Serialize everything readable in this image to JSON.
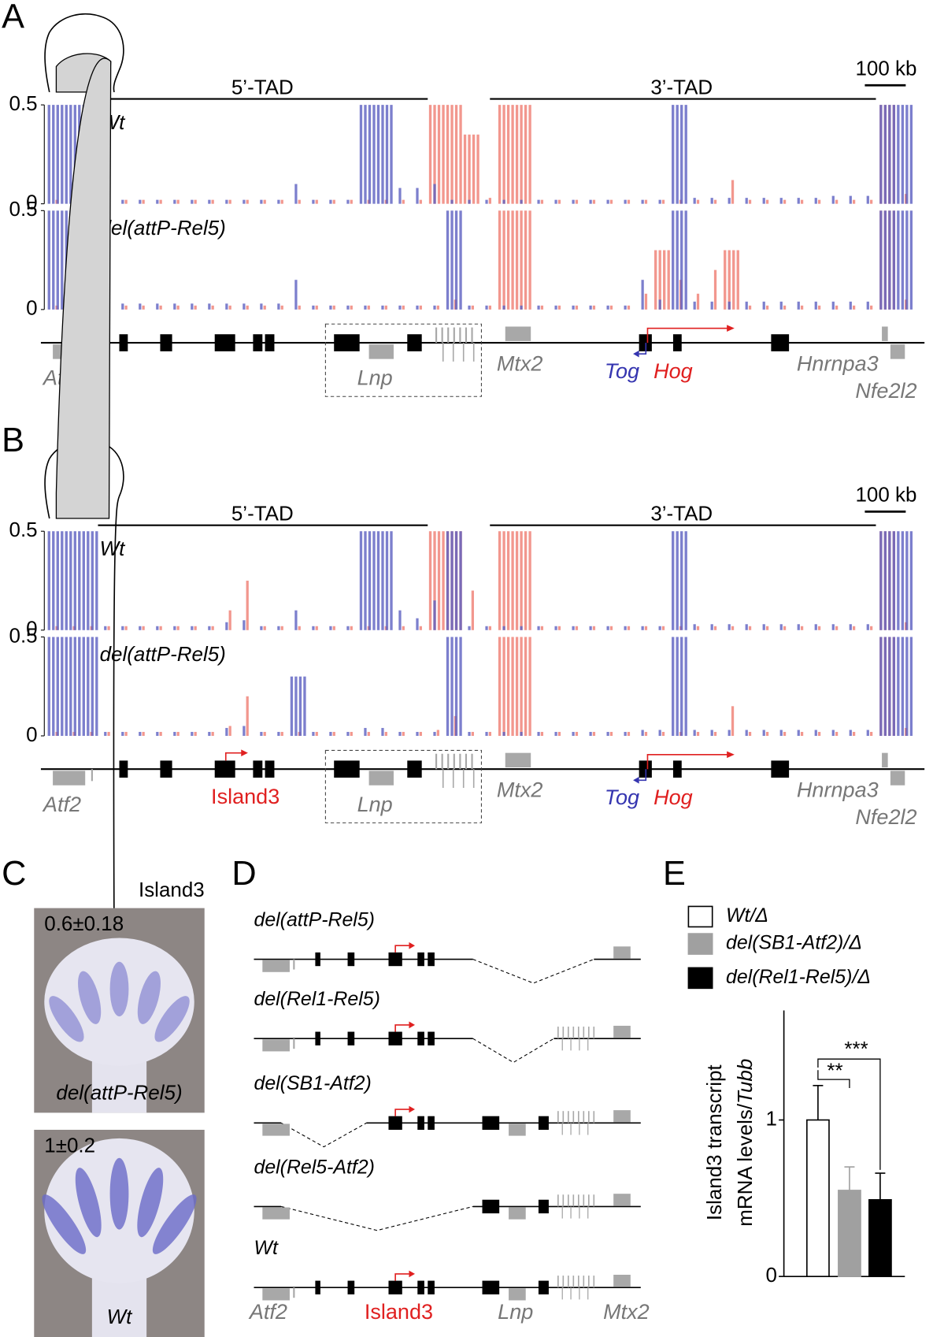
{
  "panel_labels": [
    "A",
    "B",
    "C",
    "D",
    "E"
  ],
  "browser_panels": [
    {
      "tad_left": "5’-TAD",
      "tad_right": "3’-TAD",
      "scale_bar": "100 kb",
      "tracks": [
        {
          "label": "Wt",
          "ylim": [
            0,
            0.5
          ],
          "yticks": [
            0,
            0.5
          ],
          "blue": [
            0.5,
            0.5,
            0.5,
            0.02,
            0.02,
            0.02,
            0.02,
            0.02,
            0.02,
            0.02,
            0.02,
            0.02,
            0.02,
            0.02,
            0.1,
            0.02,
            0.02,
            0.02,
            0.5,
            0.5,
            0.08,
            0.08,
            0.1,
            0.02,
            0.02,
            0.02,
            0.02,
            0.02,
            0.02,
            0.02,
            0.02,
            0.02,
            0.02,
            0.02,
            0.02,
            0.02,
            0.5,
            0.03,
            0.03,
            0.03,
            0.03,
            0.03,
            0.03,
            0.03,
            0.03,
            0.04,
            0.04,
            0.04,
            0.5,
            0.5
          ],
          "red": [
            0.02,
            0.02,
            0.02,
            0.02,
            0.02,
            0.02,
            0.02,
            0.02,
            0.02,
            0.02,
            0.02,
            0.02,
            0.02,
            0.02,
            0.02,
            0.02,
            0.02,
            0.02,
            0.02,
            0.02,
            0.02,
            0.02,
            0.5,
            0.5,
            0.35,
            0.03,
            0.5,
            0.5,
            0.02,
            0.02,
            0.02,
            0.02,
            0.02,
            0.02,
            0.02,
            0.02,
            0.02,
            0.02,
            0.02,
            0.12,
            0.02,
            0.02,
            0.02,
            0.02,
            0.02,
            0.02,
            0.02,
            0.02,
            0.5,
            0.05
          ]
        },
        {
          "label": "del(attP-Rel5)",
          "ylim": [
            0,
            0.5
          ],
          "yticks": [
            0,
            0.5
          ],
          "blue": [
            0.5,
            0.5,
            0.5,
            0.03,
            0.03,
            0.03,
            0.03,
            0.03,
            0.03,
            0.03,
            0.03,
            0.03,
            0.03,
            0.03,
            0.15,
            0.02,
            0.02,
            0.02,
            0.02,
            0.02,
            0.02,
            0.02,
            0.02,
            0.5,
            0.02,
            0.02,
            0.02,
            0.02,
            0.02,
            0.02,
            0.02,
            0.02,
            0.02,
            0.02,
            0.15,
            0.05,
            0.5,
            0.04,
            0.04,
            0.04,
            0.04,
            0.04,
            0.04,
            0.04,
            0.04,
            0.04,
            0.04,
            0.04,
            0.5,
            0.5
          ],
          "red": [
            0.02,
            0.02,
            0.02,
            0.02,
            0.02,
            0.02,
            0.02,
            0.02,
            0.02,
            0.02,
            0.02,
            0.02,
            0.02,
            0.02,
            0.02,
            0.02,
            0.02,
            0.02,
            0.02,
            0.02,
            0.02,
            0.02,
            0.02,
            0.05,
            0.02,
            0.02,
            0.5,
            0.5,
            0.02,
            0.02,
            0.02,
            0.02,
            0.02,
            0.02,
            0.08,
            0.3,
            0.15,
            0.08,
            0.2,
            0.3,
            0.02,
            0.02,
            0.02,
            0.02,
            0.02,
            0.02,
            0.02,
            0.02,
            0.5,
            0.05
          ]
        }
      ],
      "genes": {
        "Atf2": "Atf2",
        "Lnp": "Lnp",
        "Mtx2": "Mtx2",
        "Tog": "Tog",
        "Hog": "Hog",
        "Hnrnpa3": "Hnrnpa3",
        "Nfe2l2": "Nfe2l2"
      }
    },
    {
      "tad_left": "5’-TAD",
      "tad_right": "3’-TAD",
      "scale_bar": "100 kb",
      "tracks": [
        {
          "label": "Wt",
          "ylim": [
            0,
            0.5
          ],
          "yticks": [
            0,
            0.5
          ],
          "blue": [
            0.5,
            0.5,
            0.5,
            0.02,
            0.02,
            0.02,
            0.02,
            0.02,
            0.02,
            0.02,
            0.04,
            0.05,
            0.02,
            0.02,
            0.1,
            0.02,
            0.02,
            0.02,
            0.5,
            0.5,
            0.1,
            0.06,
            0.15,
            0.5,
            0.02,
            0.02,
            0.02,
            0.02,
            0.02,
            0.02,
            0.02,
            0.02,
            0.02,
            0.02,
            0.02,
            0.02,
            0.5,
            0.03,
            0.03,
            0.03,
            0.03,
            0.03,
            0.03,
            0.03,
            0.03,
            0.03,
            0.03,
            0.03,
            0.5,
            0.5
          ],
          "red": [
            0.02,
            0.02,
            0.02,
            0.02,
            0.02,
            0.02,
            0.02,
            0.02,
            0.02,
            0.02,
            0.1,
            0.25,
            0.02,
            0.02,
            0.02,
            0.02,
            0.02,
            0.02,
            0.02,
            0.02,
            0.02,
            0.02,
            0.5,
            0.5,
            0.2,
            0.02,
            0.5,
            0.5,
            0.02,
            0.02,
            0.02,
            0.02,
            0.02,
            0.02,
            0.02,
            0.02,
            0.02,
            0.02,
            0.02,
            0.02,
            0.02,
            0.02,
            0.02,
            0.02,
            0.02,
            0.02,
            0.02,
            0.02,
            0.5,
            0.04
          ]
        },
        {
          "label": "del(attP-Rel5)",
          "ylim": [
            0,
            0.5
          ],
          "yticks": [
            0,
            0.5
          ],
          "blue": [
            0.5,
            0.5,
            0.5,
            0.02,
            0.02,
            0.02,
            0.02,
            0.02,
            0.02,
            0.02,
            0.04,
            0.05,
            0.02,
            0.02,
            0.3,
            0.02,
            0.02,
            0.02,
            0.04,
            0.04,
            0.02,
            0.02,
            0.02,
            0.5,
            0.02,
            0.02,
            0.02,
            0.02,
            0.02,
            0.02,
            0.02,
            0.02,
            0.02,
            0.02,
            0.03,
            0.03,
            0.5,
            0.03,
            0.03,
            0.03,
            0.03,
            0.03,
            0.03,
            0.03,
            0.03,
            0.03,
            0.03,
            0.03,
            0.5,
            0.5
          ],
          "red": [
            0.02,
            0.02,
            0.02,
            0.02,
            0.02,
            0.02,
            0.02,
            0.02,
            0.02,
            0.02,
            0.05,
            0.2,
            0.02,
            0.02,
            0.02,
            0.02,
            0.02,
            0.02,
            0.02,
            0.02,
            0.02,
            0.02,
            0.03,
            0.1,
            0.02,
            0.02,
            0.5,
            0.5,
            0.02,
            0.02,
            0.02,
            0.02,
            0.02,
            0.02,
            0.02,
            0.02,
            0.02,
            0.02,
            0.02,
            0.15,
            0.02,
            0.02,
            0.02,
            0.02,
            0.02,
            0.02,
            0.02,
            0.02,
            0.5,
            0.04
          ]
        }
      ],
      "genes": {
        "Atf2": "Atf2",
        "Island3": "Island3",
        "Lnp": "Lnp",
        "Mtx2": "Mtx2",
        "Tog": "Tog",
        "Hog": "Hog",
        "Hnrnpa3": "Hnrnpa3",
        "Nfe2l2": "Nfe2l2"
      }
    }
  ],
  "panel_c": {
    "gene": "Island3",
    "images": [
      {
        "value": "0.6±0.18",
        "genotype": "del(attP-Rel5)"
      },
      {
        "value": "1±0.2",
        "genotype": "Wt"
      }
    ]
  },
  "panel_d": {
    "constructs": [
      "del(attP-Rel5)",
      "del(Rel1-Rel5)",
      "del(SB1-Atf2)",
      "del(Rel5-Atf2)",
      "Wt"
    ],
    "labels": {
      "Atf2": "Atf2",
      "Island3": "Island3",
      "Lnp": "Lnp",
      "Mtx2": "Mtx2"
    }
  },
  "chart_data": {
    "type": "bar",
    "ylabel": [
      "Island3 transcript",
      "mRNA levels/",
      "Tubb"
    ],
    "series": [
      {
        "name": "Wt/Δ",
        "color": "#ffffff",
        "values": [
          1
        ],
        "errors": [
          0.22
        ]
      },
      {
        "name": "del(SB1-Atf2)/Δ",
        "color": "#a0a0a0",
        "values": [
          0.55
        ],
        "errors": [
          0.15
        ]
      },
      {
        "name": "del(Rel1-Rel5)/Δ",
        "color": "#000000",
        "values": [
          0.49
        ],
        "errors": [
          0.17
        ]
      }
    ],
    "ylim": [
      0,
      1.7
    ],
    "yticks": [
      0,
      1
    ],
    "annotations": [
      "**",
      "***"
    ]
  }
}
